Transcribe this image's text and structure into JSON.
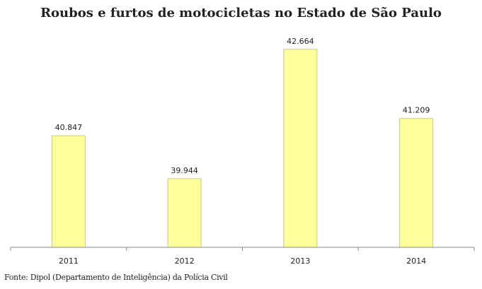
{
  "chart_data": {
    "type": "bar",
    "title": "Roubos e furtos de motocicletas no Estado de São Paulo",
    "categories": [
      "2011",
      "2012",
      "2013",
      "2014"
    ],
    "values": [
      40847,
      39944,
      42664,
      41209
    ],
    "data_labels": [
      "40.847",
      "39.944",
      "42.664",
      "41.209"
    ],
    "xlabel": "",
    "ylabel": "",
    "ylim": [
      38500,
      43000
    ],
    "grid": false,
    "bar_color": "#ffff99",
    "bar_border_color": "#c8c890",
    "source": "Fonte: Dipol (Departamento de Inteligência) da Polícia Civil"
  }
}
